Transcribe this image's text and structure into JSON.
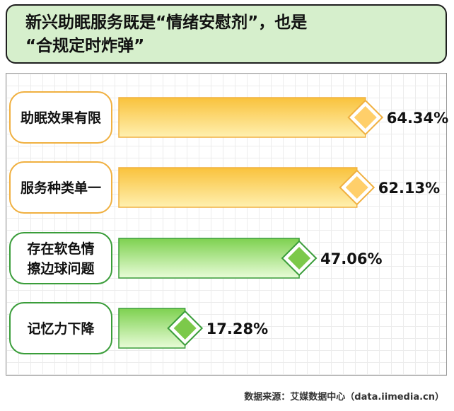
{
  "title": "新兴助眠服务既是“情绪安慰剂”，也是\n“合规定时炸弹”",
  "source": "数据来源：艾媒数据中心（data.iimedia.cn）",
  "chart_data": {
    "type": "bar",
    "orientation": "horizontal",
    "categories": [
      "助眠效果有限",
      "服务种类单一",
      "存在软色情擦边球问题",
      "记忆力下降"
    ],
    "category_lines": [
      [
        "助眠效果有限"
      ],
      [
        "服务种类单一"
      ],
      [
        "存在软色情",
        "擦边球问题"
      ],
      [
        "记忆力下降"
      ]
    ],
    "values": [
      64.34,
      62.13,
      47.06,
      17.28
    ],
    "value_labels": [
      "64.34%",
      "62.13%",
      "47.06%",
      "17.28%"
    ],
    "unit": "%",
    "grid": true,
    "colors": {
      "orange_fill_dark": "#f9c23c",
      "orange_fill_light": "#fff0b0",
      "orange_border": "#f0b040",
      "orange_diamond": "#ffcf6a",
      "green_fill_dark": "#7ed150",
      "green_fill_light": "#e8fcd8",
      "green_border": "#3a9d3a",
      "green_diamond": "#7cc94a"
    },
    "bar_color_groups": [
      "orange",
      "orange",
      "green",
      "green"
    ]
  }
}
